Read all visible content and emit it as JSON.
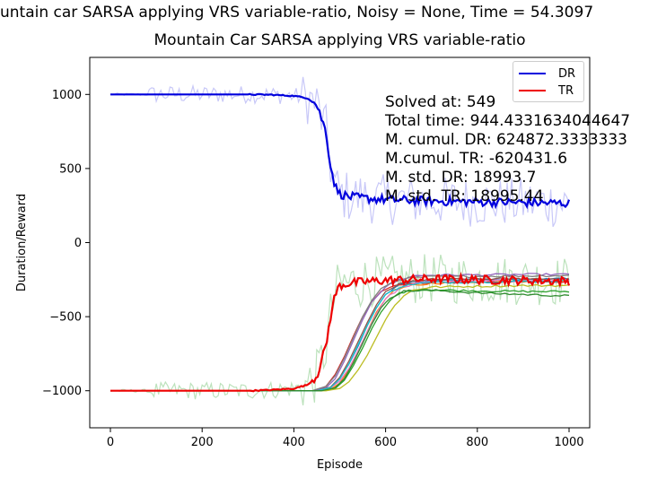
{
  "figure": {
    "suptitle": "untain car SARSA applying VRS variable-ratio, Noisy = None, Time = 54.3097",
    "title": "Mountain Car SARSA applying VRS variable-ratio"
  },
  "stats": [
    "Solved at: 549",
    "Total time: 944.4331634044647",
    "M. cumul. DR: 624872.3333333",
    "M.cumul. TR: -620431.6",
    "M. std. DR: 18993.7",
    "M. std. TR: 18995.44"
  ],
  "legend": [
    {
      "label": "DR",
      "color": "#0000dd"
    },
    {
      "label": "TR",
      "color": "#ee0000"
    }
  ],
  "chart_data": {
    "type": "line",
    "title": "Mountain Car SARSA applying VRS variable-ratio",
    "xlabel": "Episode",
    "ylabel": "Duration/Reward",
    "xlim": [
      -45,
      1045
    ],
    "ylim": [
      -1250,
      1250
    ],
    "xticks": [
      0,
      200,
      400,
      600,
      800,
      1000
    ],
    "yticks": [
      -1000,
      -500,
      0,
      500,
      1000
    ],
    "xtick_labels": [
      "0",
      "200",
      "400",
      "600",
      "800",
      "1000"
    ],
    "ytick_labels": [
      "−1000",
      "−500",
      "0",
      "500",
      "1000"
    ],
    "grid": false,
    "legend_position": "top-right",
    "series": [
      {
        "name": "DR",
        "color": "#0000dd",
        "role": "mean",
        "x": [
          0,
          100,
          200,
          300,
          350,
          400,
          430,
          450,
          470,
          480,
          490,
          500,
          520,
          550,
          600,
          700,
          800,
          900,
          1000
        ],
        "values": [
          1000,
          1000,
          1000,
          1000,
          998,
          990,
          975,
          930,
          750,
          520,
          380,
          330,
          310,
          300,
          290,
          280,
          275,
          270,
          265
        ]
      },
      {
        "name": "TR",
        "color": "#ee0000",
        "role": "mean",
        "x": [
          0,
          100,
          200,
          300,
          350,
          400,
          430,
          450,
          470,
          480,
          490,
          500,
          520,
          550,
          600,
          700,
          800,
          900,
          1000
        ],
        "values": [
          -1000,
          -1000,
          -1000,
          -1000,
          -995,
          -985,
          -960,
          -900,
          -700,
          -500,
          -350,
          -290,
          -275,
          -265,
          -255,
          -245,
          -250,
          -255,
          -260
        ]
      },
      {
        "color": "#1f77b4",
        "role": "run",
        "x": [
          0,
          450,
          480,
          500,
          520,
          540,
          560,
          580,
          600,
          620,
          650,
          700,
          800,
          900,
          1000
        ],
        "values": [
          -1000,
          -1000,
          -980,
          -920,
          -820,
          -700,
          -560,
          -440,
          -350,
          -300,
          -270,
          -255,
          -250,
          -250,
          -245
        ]
      },
      {
        "color": "#ff7f0e",
        "role": "run",
        "x": [
          0,
          450,
          480,
          500,
          520,
          540,
          560,
          580,
          600,
          620,
          650,
          700,
          800,
          900,
          1000
        ],
        "values": [
          -1000,
          -1000,
          -990,
          -950,
          -860,
          -740,
          -600,
          -470,
          -380,
          -320,
          -290,
          -275,
          -265,
          -265,
          -260
        ]
      },
      {
        "color": "#2ca02c",
        "role": "run",
        "x": [
          0,
          460,
          490,
          510,
          530,
          550,
          570,
          590,
          610,
          630,
          660,
          700,
          800,
          900,
          1000
        ],
        "values": [
          -1000,
          -1000,
          -985,
          -930,
          -830,
          -710,
          -580,
          -470,
          -390,
          -340,
          -320,
          -320,
          -325,
          -330,
          -330
        ]
      },
      {
        "color": "#d62728",
        "role": "run",
        "x": [
          0,
          450,
          470,
          490,
          510,
          530,
          550,
          570,
          590,
          620,
          650,
          700,
          800,
          900,
          1000
        ],
        "values": [
          -1000,
          -1000,
          -970,
          -890,
          -770,
          -630,
          -500,
          -400,
          -330,
          -290,
          -275,
          -270,
          -268,
          -265,
          -262
        ]
      },
      {
        "color": "#9467bd",
        "role": "run",
        "x": [
          0,
          440,
          470,
          490,
          510,
          530,
          550,
          570,
          600,
          630,
          660,
          700,
          800,
          900,
          1000
        ],
        "values": [
          -1000,
          -1000,
          -980,
          -920,
          -800,
          -660,
          -520,
          -400,
          -300,
          -250,
          -225,
          -220,
          -218,
          -215,
          -215
        ]
      },
      {
        "color": "#8c564b",
        "role": "run",
        "x": [
          0,
          450,
          480,
          500,
          520,
          540,
          560,
          580,
          600,
          630,
          660,
          700,
          800,
          900,
          1000
        ],
        "values": [
          -1000,
          -1000,
          -975,
          -910,
          -800,
          -670,
          -540,
          -420,
          -330,
          -280,
          -260,
          -250,
          -245,
          -245,
          -245
        ]
      },
      {
        "color": "#e377c2",
        "role": "run",
        "x": [
          0,
          450,
          480,
          500,
          520,
          540,
          560,
          580,
          600,
          630,
          660,
          700,
          800,
          900,
          1000
        ],
        "values": [
          -1000,
          -1000,
          -980,
          -935,
          -850,
          -730,
          -600,
          -480,
          -380,
          -310,
          -280,
          -265,
          -260,
          -258,
          -255
        ]
      },
      {
        "color": "#7f7f7f",
        "role": "run",
        "x": [
          0,
          440,
          470,
          490,
          510,
          530,
          550,
          570,
          590,
          620,
          650,
          700,
          800,
          900,
          1000
        ],
        "values": [
          -1000,
          -1000,
          -970,
          -900,
          -780,
          -640,
          -500,
          -390,
          -310,
          -260,
          -240,
          -230,
          -228,
          -225,
          -222
        ]
      },
      {
        "color": "#bcbd22",
        "role": "run",
        "x": [
          0,
          470,
          500,
          520,
          540,
          560,
          580,
          600,
          620,
          640,
          660,
          700,
          800,
          900,
          1000
        ],
        "values": [
          -1000,
          -1000,
          -985,
          -940,
          -860,
          -760,
          -640,
          -520,
          -420,
          -360,
          -320,
          -300,
          -295,
          -290,
          -290
        ]
      },
      {
        "color": "#17becf",
        "role": "run",
        "x": [
          0,
          450,
          480,
          500,
          520,
          540,
          560,
          580,
          600,
          630,
          660,
          700,
          800,
          900,
          1000
        ],
        "values": [
          -1000,
          -1000,
          -978,
          -920,
          -820,
          -690,
          -560,
          -440,
          -350,
          -300,
          -280,
          -270,
          -265,
          -262,
          -260
        ]
      },
      {
        "color": "#2e8b2e",
        "role": "run",
        "x": [
          0,
          460,
          490,
          510,
          530,
          550,
          570,
          590,
          610,
          640,
          680,
          720,
          800,
          900,
          1000
        ],
        "values": [
          -1000,
          -1000,
          -980,
          -920,
          -810,
          -680,
          -550,
          -440,
          -370,
          -330,
          -320,
          -325,
          -340,
          -350,
          -360
        ]
      }
    ],
    "bands": [
      {
        "series": "DR",
        "color": "#9a9af2",
        "opacity": 0.55
      },
      {
        "series": "TR",
        "color": "#8fcf8f",
        "opacity": 0.6
      }
    ]
  }
}
